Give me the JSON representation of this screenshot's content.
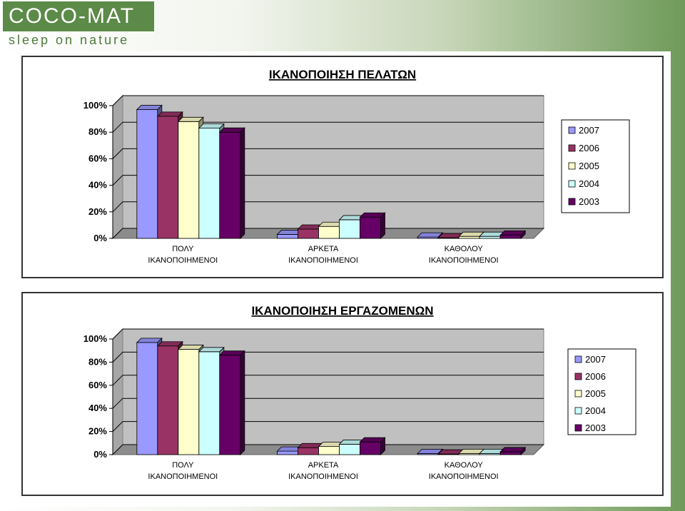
{
  "brand": {
    "name": "COCO-MAT",
    "tagline": "sleep on nature"
  },
  "chart_data": [
    {
      "type": "bar",
      "title": "ΙΚΑΝΟΠΟΙΗΣΗ ΠΕΛΑΤΩΝ",
      "categories": [
        [
          "ΠΟΛΥ",
          "ΙΚΑΝΟΠΟΙΗΜΕΝΟΙ"
        ],
        [
          "ΑΡΚΕΤΑ",
          "ΙΚΑΝΟΠΟΙΗΜΕΝΟΙ"
        ],
        [
          "ΚΑΘΟΛΟΥ",
          "ΙΚΑΝΟΠΟΙΗΜΕΝΟΙ"
        ]
      ],
      "series": [
        {
          "name": "2007",
          "values": [
            97,
            3,
            1
          ],
          "color": "#9999ff"
        },
        {
          "name": "2006",
          "values": [
            92,
            7,
            0.5
          ],
          "color": "#993366"
        },
        {
          "name": "2005",
          "values": [
            88,
            9,
            1.5
          ],
          "color": "#ffffcc"
        },
        {
          "name": "2004",
          "values": [
            83,
            14,
            1.5
          ],
          "color": "#ccffff"
        },
        {
          "name": "2003",
          "values": [
            80,
            16,
            2.5
          ],
          "color": "#660066"
        }
      ],
      "y_ticks": [
        "0%",
        "20%",
        "40%",
        "60%",
        "80%",
        "100%"
      ],
      "ylim": [
        0,
        100
      ],
      "grid": true,
      "legend": "right"
    },
    {
      "type": "bar",
      "title": "ΙΚΑΝΟΠΟΙΗΣΗ ΕΡΓΑΖΟΜΕΝΩΝ",
      "categories": [
        [
          "ΠΟΛΥ",
          "ΙΚΑΝΟΠΟΙΗΜΕΝΟΙ"
        ],
        [
          "ΑΡΚΕΤΑ",
          "ΙΚΑΝΟΠΟΙΗΜΕΝΟΙ"
        ],
        [
          "ΚΑΘΟΛΟΥ",
          "ΙΚΑΝΟΠΟΙΗΜΕΝΟΙ"
        ]
      ],
      "series": [
        {
          "name": "2007",
          "values": [
            97,
            3,
            1
          ],
          "color": "#9999ff"
        },
        {
          "name": "2006",
          "values": [
            94,
            6,
            0.5
          ],
          "color": "#993366"
        },
        {
          "name": "2005",
          "values": [
            91,
            7,
            1
          ],
          "color": "#ffffcc"
        },
        {
          "name": "2004",
          "values": [
            89,
            9,
            1
          ],
          "color": "#ccffff"
        },
        {
          "name": "2003",
          "values": [
            86,
            11,
            2.5
          ],
          "color": "#660066"
        }
      ],
      "y_ticks": [
        "0%",
        "20%",
        "40%",
        "60%",
        "80%",
        "100%"
      ],
      "ylim": [
        0,
        100
      ],
      "grid": true,
      "legend": "right"
    }
  ]
}
